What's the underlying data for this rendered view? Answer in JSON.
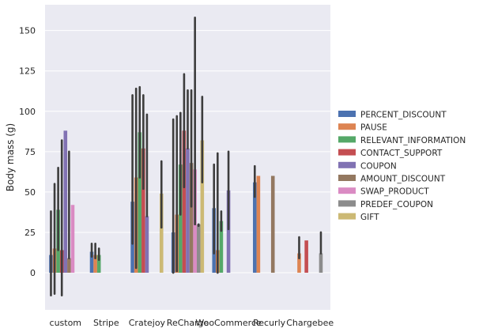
{
  "chart_data": {
    "type": "bar",
    "title": "",
    "xlabel": "",
    "ylabel": "Body mass (g)",
    "ylim": [
      -23,
      166
    ],
    "yticks": [
      0,
      25,
      50,
      75,
      100,
      125,
      150
    ],
    "grid": true,
    "legend_position": "center-right",
    "categories": [
      "custom",
      "Stripe",
      "Cratejoy",
      "ReCharge",
      "WooCommerce",
      "Recurly",
      "Chargebee"
    ],
    "series": [
      {
        "name": "PERCENT_DISCOUNT",
        "color": "#4c72b0",
        "values": [
          11,
          13,
          44,
          25,
          40,
          56,
          null
        ],
        "err_low": [
          -14,
          10,
          18,
          0,
          12,
          47,
          null
        ],
        "err_high": [
          38,
          18,
          110,
          95,
          67,
          66,
          null
        ]
      },
      {
        "name": "PAUSE",
        "color": "#dd8452",
        "values": [
          15,
          11,
          59,
          36,
          14,
          60,
          12
        ],
        "err_low": [
          -13,
          9,
          3,
          1,
          0,
          60,
          9
        ],
        "err_high": [
          55,
          18,
          114,
          97,
          74,
          60,
          22
        ]
      },
      {
        "name": "RELEVANT_INFORMATION",
        "color": "#55a868",
        "values": [
          39,
          11,
          87,
          67,
          32,
          null,
          null
        ],
        "err_low": [
          14,
          8,
          59,
          36,
          26,
          null,
          null
        ],
        "err_high": [
          65,
          15,
          115,
          99,
          38,
          null,
          null
        ]
      },
      {
        "name": "CONTACT_SUPPORT",
        "color": "#c44e52",
        "values": [
          14,
          null,
          77,
          88,
          null,
          null,
          20
        ],
        "err_low": [
          -14,
          null,
          52,
          53,
          null,
          null,
          20
        ],
        "err_high": [
          82,
          null,
          110,
          123,
          null,
          null,
          20
        ]
      },
      {
        "name": "COUPON",
        "color": "#8172b3",
        "values": [
          88,
          null,
          35,
          77,
          51,
          null,
          null
        ],
        "err_low": [
          88,
          null,
          35,
          77,
          27,
          null,
          null
        ],
        "err_high": [
          88,
          null,
          98,
          113,
          75,
          null,
          null
        ]
      },
      {
        "name": "AMOUNT_DISCOUNT",
        "color": "#937860",
        "values": [
          9,
          null,
          null,
          68,
          null,
          60,
          null
        ],
        "err_low": [
          9,
          null,
          null,
          41,
          null,
          60,
          null
        ],
        "err_high": [
          75,
          null,
          null,
          113,
          null,
          60,
          null
        ]
      },
      {
        "name": "SWAP_PRODUCT",
        "color": "#da8bc3",
        "values": [
          42,
          null,
          null,
          64,
          null,
          null,
          null
        ],
        "err_low": [
          42,
          null,
          null,
          30,
          null,
          null,
          null
        ],
        "err_high": [
          42,
          null,
          null,
          158,
          null,
          null,
          null
        ]
      },
      {
        "name": "PREDEF_COUPON",
        "color": "#8c8c8c",
        "values": [
          null,
          null,
          null,
          30,
          null,
          null,
          12
        ],
        "err_low": [
          null,
          null,
          null,
          29,
          null,
          null,
          12
        ],
        "err_high": [
          null,
          null,
          null,
          30,
          null,
          null,
          25
        ]
      },
      {
        "name": "GIFT",
        "color": "#ccb974",
        "values": [
          null,
          null,
          49,
          82,
          null,
          null,
          null
        ],
        "err_low": [
          null,
          null,
          28,
          56,
          null,
          null,
          null
        ],
        "err_high": [
          null,
          null,
          69,
          109,
          null,
          null,
          null
        ]
      }
    ]
  }
}
